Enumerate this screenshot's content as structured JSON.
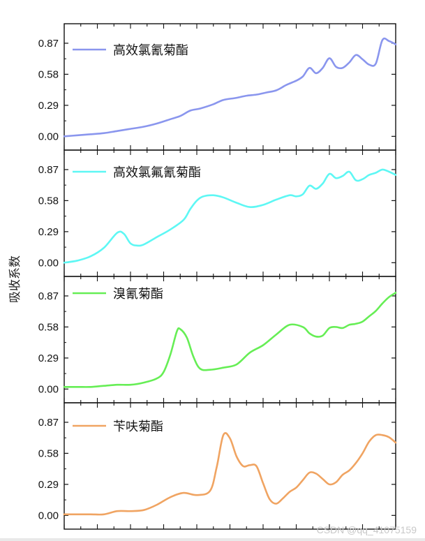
{
  "chart_data": {
    "type": "line",
    "ylabel": "吸收系数",
    "xlabel": "",
    "x_range": [
      0,
      100
    ],
    "stacked_panels": true,
    "panels": [
      {
        "name": "高效氯氰菊酯",
        "color": "#8a96ee",
        "legend": "高效氯氰菊酯",
        "ylim": [
          -0.05,
          1.0
        ],
        "yticks": [
          "0.00",
          "0.29",
          "0.58",
          "0.87"
        ],
        "x": [
          0,
          4,
          8,
          12,
          16,
          20,
          24,
          28,
          32,
          35,
          38,
          41,
          45,
          48,
          52,
          55,
          58,
          61,
          64,
          67,
          70,
          72,
          74,
          76,
          78,
          80,
          82,
          84,
          86,
          88,
          90,
          92,
          94,
          96,
          98,
          100
        ],
        "y": [
          0.0,
          0.01,
          0.02,
          0.03,
          0.05,
          0.07,
          0.09,
          0.12,
          0.16,
          0.19,
          0.24,
          0.26,
          0.3,
          0.34,
          0.36,
          0.38,
          0.39,
          0.41,
          0.43,
          0.48,
          0.52,
          0.56,
          0.64,
          0.59,
          0.64,
          0.73,
          0.65,
          0.64,
          0.69,
          0.76,
          0.72,
          0.67,
          0.68,
          0.9,
          0.89,
          0.86
        ]
      },
      {
        "name": "高效氯氟氰菊酯",
        "color": "#5ef7f4",
        "legend": "高效氯氟氰菊酯",
        "ylim": [
          -0.05,
          1.0
        ],
        "yticks": [
          "0.00",
          "0.29",
          "0.58",
          "0.87"
        ],
        "x": [
          0,
          4,
          8,
          12,
          16,
          18,
          20,
          22,
          24,
          28,
          32,
          36,
          38,
          40,
          42,
          45,
          48,
          52,
          56,
          60,
          64,
          68,
          70,
          72,
          74,
          76,
          78,
          80,
          82,
          84,
          86,
          88,
          90,
          92,
          94,
          96,
          98,
          100
        ],
        "y": [
          0.0,
          0.02,
          0.06,
          0.14,
          0.28,
          0.27,
          0.18,
          0.16,
          0.17,
          0.24,
          0.31,
          0.4,
          0.5,
          0.58,
          0.62,
          0.63,
          0.61,
          0.56,
          0.52,
          0.54,
          0.59,
          0.63,
          0.62,
          0.64,
          0.72,
          0.69,
          0.74,
          0.83,
          0.79,
          0.81,
          0.85,
          0.77,
          0.78,
          0.82,
          0.84,
          0.87,
          0.85,
          0.82
        ]
      },
      {
        "name": "溴氰菊酯",
        "color": "#66ee55",
        "legend": "溴氰菊酯",
        "ylim": [
          -0.05,
          1.0
        ],
        "yticks": [
          "0.00",
          "0.29",
          "0.58",
          "0.87"
        ],
        "x": [
          0,
          4,
          8,
          12,
          16,
          20,
          24,
          28,
          30,
          32,
          34,
          35,
          37,
          39,
          41,
          44,
          48,
          52,
          56,
          60,
          64,
          68,
          72,
          74,
          76,
          78,
          80,
          82,
          84,
          86,
          88,
          90,
          92,
          94,
          96,
          98,
          100
        ],
        "y": [
          0.02,
          0.02,
          0.02,
          0.03,
          0.04,
          0.04,
          0.06,
          0.1,
          0.16,
          0.32,
          0.54,
          0.56,
          0.48,
          0.3,
          0.19,
          0.18,
          0.2,
          0.23,
          0.34,
          0.41,
          0.51,
          0.6,
          0.58,
          0.52,
          0.49,
          0.5,
          0.57,
          0.58,
          0.57,
          0.6,
          0.61,
          0.63,
          0.68,
          0.73,
          0.8,
          0.86,
          0.9
        ]
      },
      {
        "name": "苄呋菊酯",
        "color": "#f0a462",
        "legend": "苄呋菊酯",
        "ylim": [
          -0.05,
          1.0
        ],
        "yticks": [
          "0.00",
          "0.29",
          "0.58",
          "0.87"
        ],
        "x": [
          0,
          4,
          8,
          12,
          16,
          20,
          24,
          28,
          32,
          36,
          40,
          44,
          46,
          48,
          50,
          52,
          54,
          56,
          58,
          60,
          62,
          64,
          66,
          68,
          70,
          72,
          74,
          76,
          78,
          80,
          82,
          84,
          86,
          88,
          90,
          92,
          94,
          96,
          98,
          100
        ],
        "y": [
          0.01,
          0.01,
          0.01,
          0.01,
          0.04,
          0.04,
          0.05,
          0.1,
          0.17,
          0.21,
          0.19,
          0.23,
          0.45,
          0.75,
          0.72,
          0.55,
          0.46,
          0.47,
          0.46,
          0.3,
          0.15,
          0.11,
          0.16,
          0.22,
          0.26,
          0.33,
          0.4,
          0.39,
          0.34,
          0.29,
          0.31,
          0.38,
          0.42,
          0.49,
          0.58,
          0.69,
          0.75,
          0.75,
          0.73,
          0.68
        ]
      }
    ]
  },
  "watermark": "CSDN @qq_41075159"
}
